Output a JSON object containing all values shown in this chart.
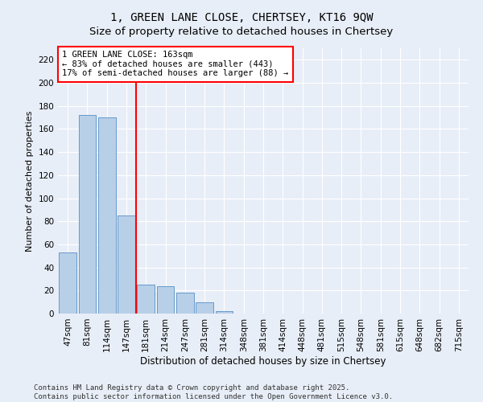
{
  "title": "1, GREEN LANE CLOSE, CHERTSEY, KT16 9QW",
  "subtitle": "Size of property relative to detached houses in Chertsey",
  "xlabel": "Distribution of detached houses by size in Chertsey",
  "ylabel": "Number of detached properties",
  "categories": [
    "47sqm",
    "81sqm",
    "114sqm",
    "147sqm",
    "181sqm",
    "214sqm",
    "247sqm",
    "281sqm",
    "314sqm",
    "348sqm",
    "381sqm",
    "414sqm",
    "448sqm",
    "481sqm",
    "515sqm",
    "548sqm",
    "581sqm",
    "615sqm",
    "648sqm",
    "682sqm",
    "715sqm"
  ],
  "values": [
    53,
    172,
    170,
    85,
    25,
    24,
    18,
    10,
    2,
    0,
    0,
    0,
    0,
    0,
    0,
    0,
    0,
    0,
    0,
    0,
    0
  ],
  "bar_color": "#b8cfe8",
  "bar_edge_color": "#6699cc",
  "vline_x": 3.5,
  "vline_color": "red",
  "annotation_text": "1 GREEN LANE CLOSE: 163sqm\n← 83% of detached houses are smaller (443)\n17% of semi-detached houses are larger (88) →",
  "annotation_box_color": "white",
  "annotation_box_edge_color": "red",
  "ylim": [
    0,
    230
  ],
  "yticks": [
    0,
    20,
    40,
    60,
    80,
    100,
    120,
    140,
    160,
    180,
    200,
    220
  ],
  "background_color": "#e8eef7",
  "grid_color": "white",
  "footer": "Contains HM Land Registry data © Crown copyright and database right 2025.\nContains public sector information licensed under the Open Government Licence v3.0.",
  "title_fontsize": 10,
  "xlabel_fontsize": 8.5,
  "ylabel_fontsize": 8,
  "tick_fontsize": 7.5,
  "annotation_fontsize": 7.5,
  "footer_fontsize": 6.5
}
